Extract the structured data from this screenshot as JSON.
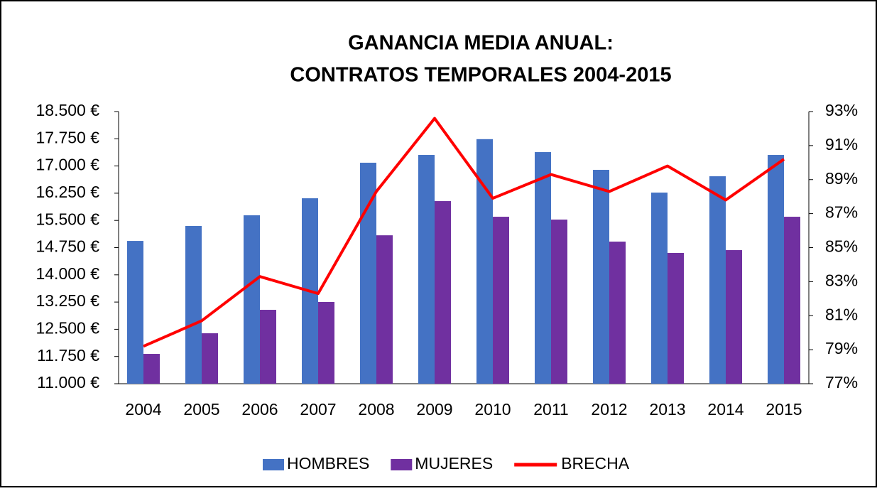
{
  "chart_data": {
    "type": "bar_line",
    "title": [
      "GANANCIA MEDIA ANUAL:",
      "CONTRATOS TEMPORALES 2004-2015"
    ],
    "categories": [
      "2004",
      "2005",
      "2006",
      "2007",
      "2008",
      "2009",
      "2010",
      "2011",
      "2012",
      "2013",
      "2014",
      "2015"
    ],
    "series": [
      {
        "name": "HOMBRES",
        "type": "bar",
        "color": "#4472c4",
        "values": [
          14935,
          15347,
          15641,
          16110,
          17090,
          17305,
          17740,
          17383,
          16894,
          16267,
          16717,
          17305
        ]
      },
      {
        "name": "MUJERES",
        "type": "bar",
        "color": "#7030a0",
        "values": [
          11822,
          12390,
          13036,
          13252,
          15090,
          16032,
          15601,
          15523,
          14916,
          14603,
          14681,
          15601
        ]
      },
      {
        "name": "BRECHA",
        "type": "line",
        "axis": "y2",
        "color": "#ff0000",
        "values": [
          79.2,
          80.7,
          83.3,
          82.3,
          88.3,
          92.6,
          87.9,
          89.3,
          88.3,
          89.8,
          87.8,
          90.2
        ]
      }
    ],
    "ylim": [
      11000,
      18500
    ],
    "yticks": [
      {
        "value": 11000,
        "label": "11.000 €"
      },
      {
        "value": 11750,
        "label": "11.750 €"
      },
      {
        "value": 12500,
        "label": "12.500 €"
      },
      {
        "value": 13250,
        "label": "13.250 €"
      },
      {
        "value": 14000,
        "label": "14.000 €"
      },
      {
        "value": 14750,
        "label": "14.750 €"
      },
      {
        "value": 15500,
        "label": "15.500 €"
      },
      {
        "value": 16250,
        "label": "16.250 €"
      },
      {
        "value": 17000,
        "label": "17.000 €"
      },
      {
        "value": 17750,
        "label": "17.750 €"
      },
      {
        "value": 18500,
        "label": "18.500 €"
      }
    ],
    "y2lim": [
      77,
      93
    ],
    "y2ticks": [
      {
        "value": 77,
        "label": "77%"
      },
      {
        "value": 79,
        "label": "79%"
      },
      {
        "value": 81,
        "label": "81%"
      },
      {
        "value": 83,
        "label": "83%"
      },
      {
        "value": 85,
        "label": "85%"
      },
      {
        "value": 87,
        "label": "87%"
      },
      {
        "value": 89,
        "label": "89%"
      },
      {
        "value": 91,
        "label": "91%"
      },
      {
        "value": 93,
        "label": "93%"
      }
    ],
    "legend": "bottom"
  }
}
